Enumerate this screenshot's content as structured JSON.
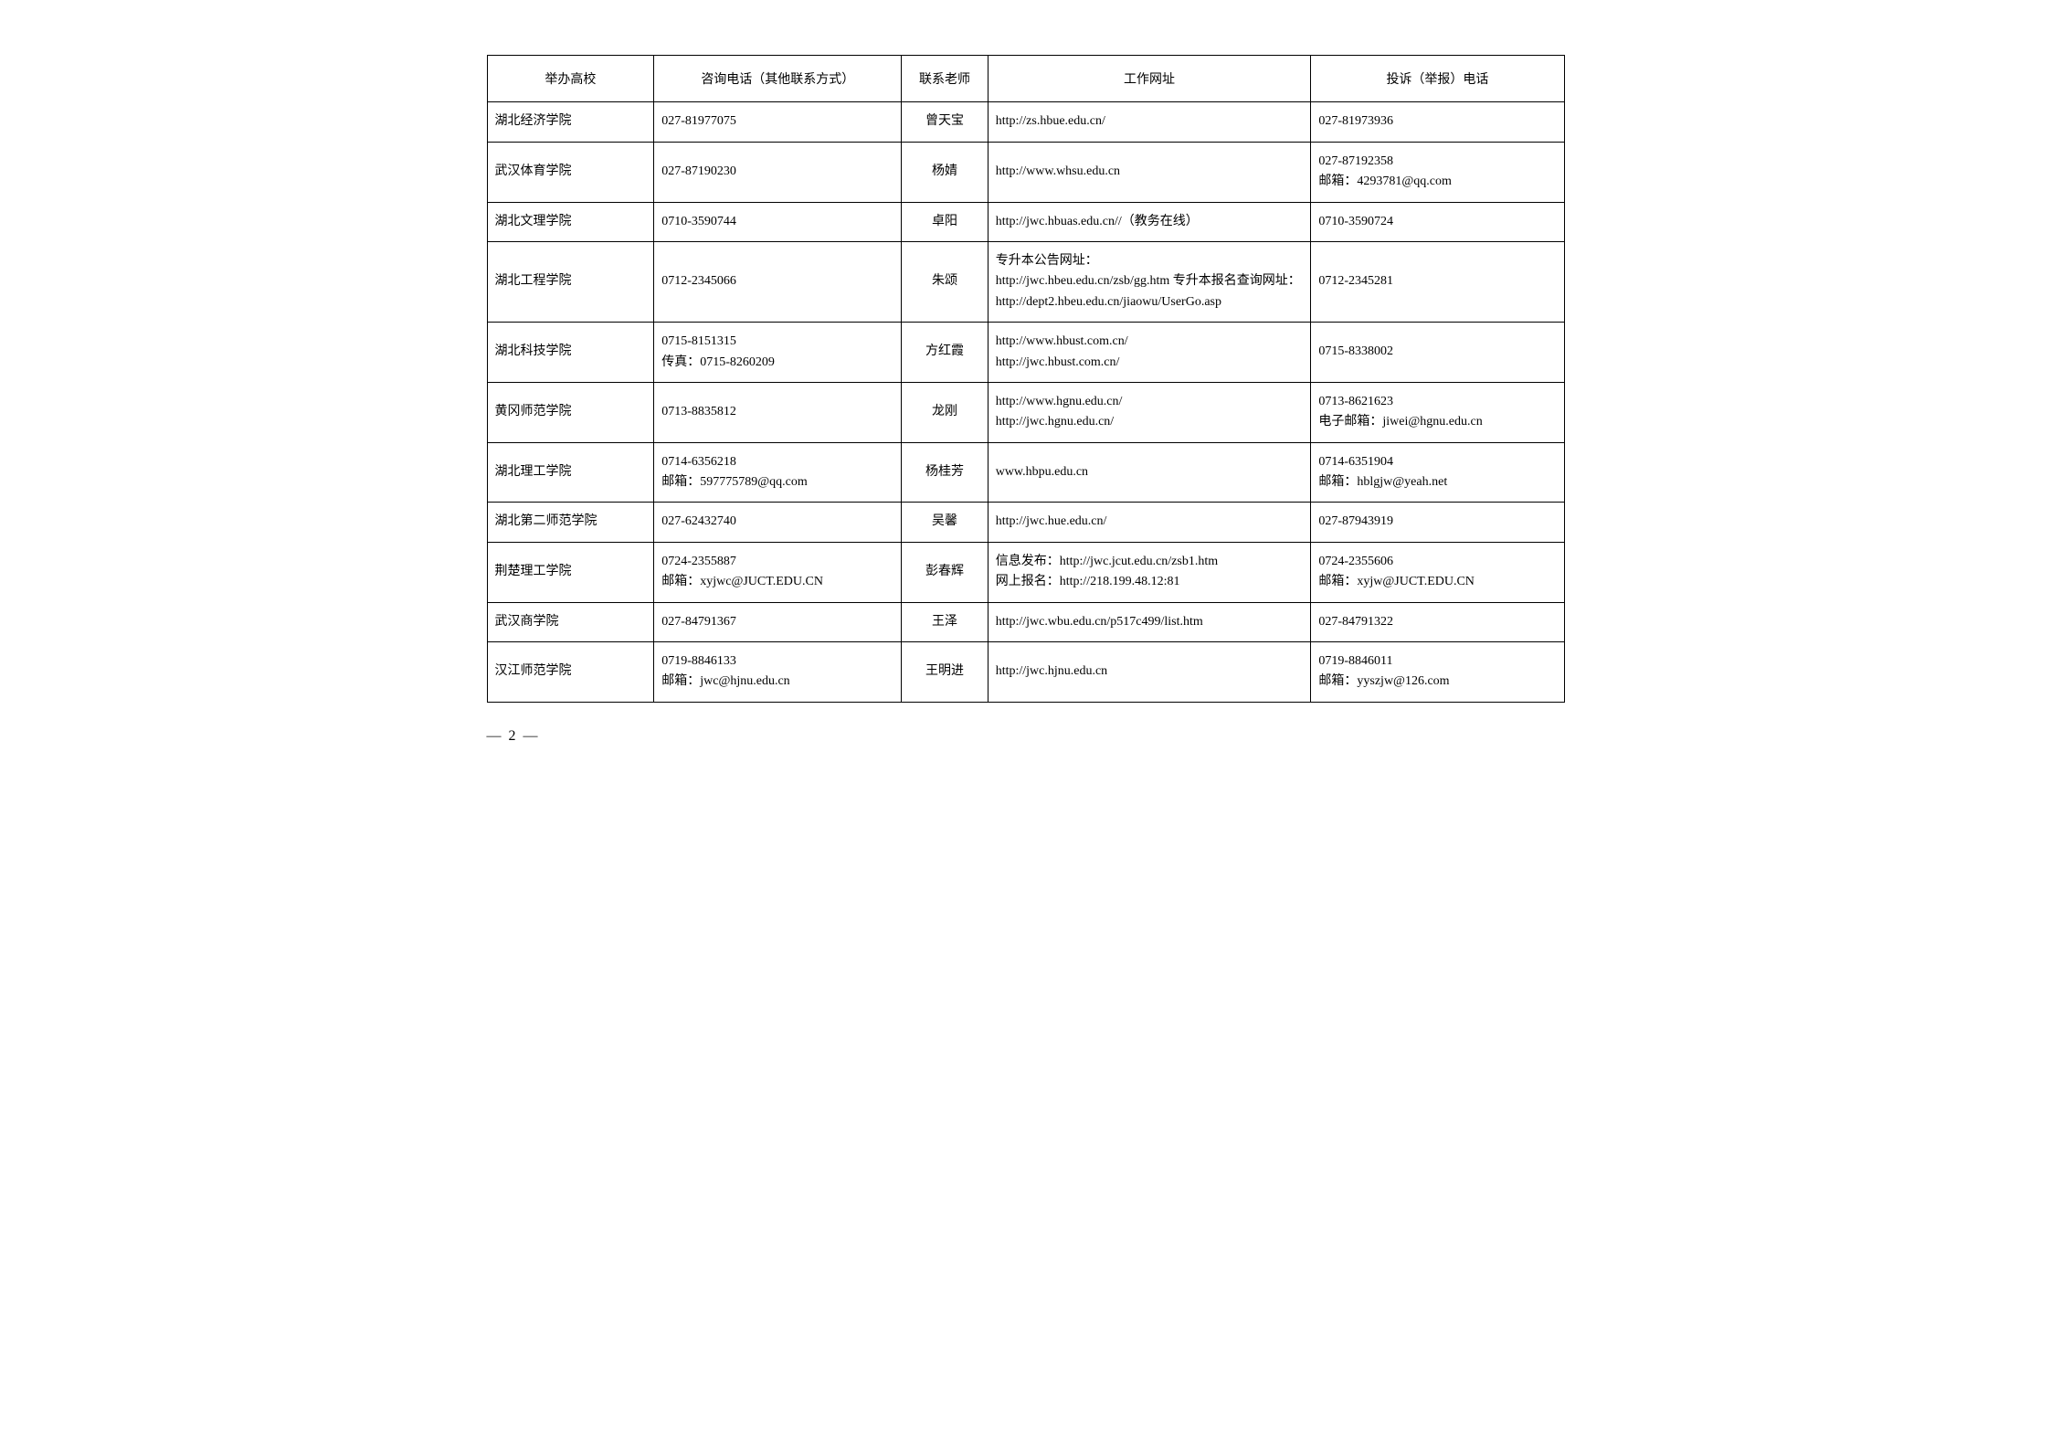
{
  "table": {
    "columns": [
      "举办高校",
      "咨询电话（其他联系方式）",
      "联系老师",
      "工作网址",
      "投诉（举报）电话"
    ],
    "rows": [
      {
        "school": "湖北经济学院",
        "phone": "027-81977075",
        "teacher": "曾天宝",
        "url": "http://zs.hbue.edu.cn/",
        "complaint": "027-81973936"
      },
      {
        "school": "武汉体育学院",
        "phone": "027-87190230",
        "teacher": "杨婧",
        "url": "http://www.whsu.edu.cn",
        "complaint": "027-87192358\n邮箱：4293781@qq.com"
      },
      {
        "school": "湖北文理学院",
        "phone": "0710-3590744",
        "teacher": "卓阳",
        "url": "http://jwc.hbuas.edu.cn//（教务在线）",
        "complaint": "0710-3590724"
      },
      {
        "school": "湖北工程学院",
        "phone": "0712-2345066",
        "teacher": "朱颂",
        "url": "专升本公告网址：\nhttp://jwc.hbeu.edu.cn/zsb/gg.htm 专升本报名查询网址：\nhttp://dept2.hbeu.edu.cn/jiaowu/UserGo.asp",
        "complaint": "0712-2345281"
      },
      {
        "school": "湖北科技学院",
        "phone": "0715-8151315\n传真：0715-8260209",
        "teacher": "方红霞",
        "url": "http://www.hbust.com.cn/\nhttp://jwc.hbust.com.cn/",
        "complaint": "0715-8338002"
      },
      {
        "school": "黄冈师范学院",
        "phone": "0713-8835812",
        "teacher": "龙刚",
        "url": "http://www.hgnu.edu.cn/\nhttp://jwc.hgnu.edu.cn/",
        "complaint": "0713-8621623\n电子邮箱：jiwei@hgnu.edu.cn"
      },
      {
        "school": "湖北理工学院",
        "phone": "0714-6356218\n邮箱：597775789@qq.com",
        "teacher": "杨桂芳",
        "url": "www.hbpu.edu.cn",
        "complaint": "0714-6351904\n邮箱：hblgjw@yeah.net"
      },
      {
        "school": "湖北第二师范学院",
        "phone": "027-62432740",
        "teacher": "吴馨",
        "url": "http://jwc.hue.edu.cn/",
        "complaint": "027-87943919"
      },
      {
        "school": "荆楚理工学院",
        "phone": "0724-2355887\n邮箱：xyjwc@JUCT.EDU.CN",
        "teacher": "彭春辉",
        "url": "信息发布：http://jwc.jcut.edu.cn/zsb1.htm\n网上报名：http://218.199.48.12:81",
        "complaint": "0724-2355606\n邮箱：xyjw@JUCT.EDU.CN"
      },
      {
        "school": "武汉商学院",
        "phone": "027-84791367",
        "teacher": "王泽",
        "url": "http://jwc.wbu.edu.cn/p517c499/list.htm",
        "complaint": "027-84791322"
      },
      {
        "school": "汉江师范学院",
        "phone": "0719-8846133\n邮箱：jwc@hjnu.edu.cn",
        "teacher": "王明进",
        "url": "http://jwc.hjnu.edu.cn",
        "complaint": "0719-8846011\n邮箱：yyszjw@126.com"
      }
    ],
    "border_color": "#000000",
    "background_color": "#ffffff",
    "text_color": "#000000",
    "header_font": "SimHei",
    "body_font": "SimSun",
    "font_size": 14,
    "column_widths_pct": [
      15.5,
      23,
      8,
      30,
      23.5
    ]
  },
  "page_number": "— 2 —"
}
